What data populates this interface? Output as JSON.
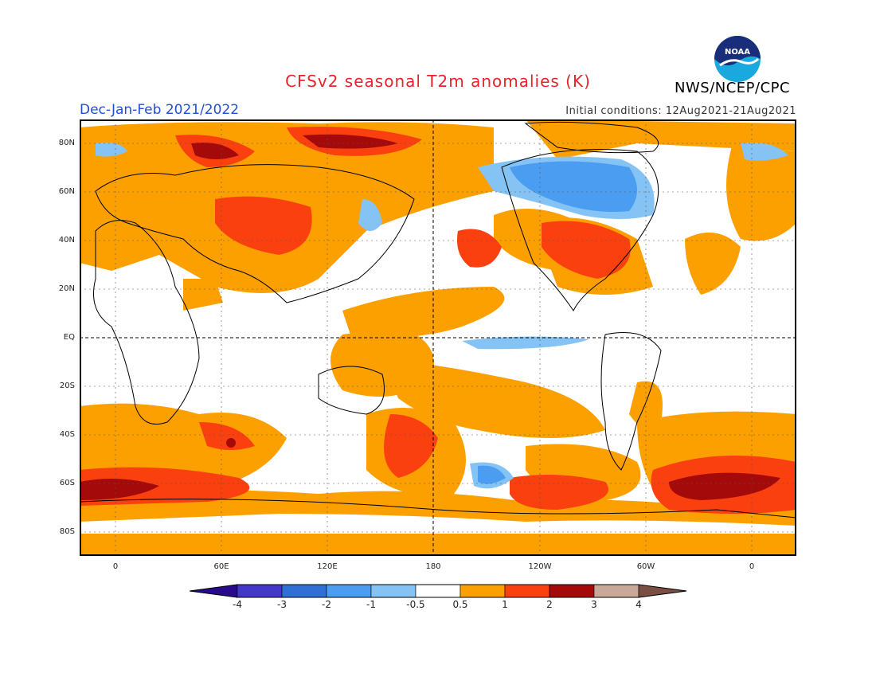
{
  "header": {
    "title": "CFSv2 seasonal T2m anomalies (K)",
    "season": "Dec-Jan-Feb 2021/2022",
    "initial_conditions": "Initial conditions: 12Aug2021-21Aug2021",
    "agency": "NWS/NCEP/CPC",
    "logo_text": "NOAA"
  },
  "map": {
    "lat_labels": [
      "80N",
      "60N",
      "40N",
      "20N",
      "EQ",
      "20S",
      "40S",
      "60S",
      "80S"
    ],
    "lon_labels": [
      "0",
      "60E",
      "120E",
      "180",
      "120W",
      "60W",
      "0"
    ]
  },
  "colorbar": {
    "labels": [
      "-4",
      "-3",
      "-2",
      "-1",
      "-0.5",
      "0.5",
      "1",
      "2",
      "3",
      "4"
    ],
    "colors": [
      "#2a0a8c",
      "#4438c8",
      "#2f6fd6",
      "#4a9df0",
      "#86c3f5",
      "#ffffff",
      "#fca000",
      "#fb4010",
      "#a50a0a",
      "#c9a898",
      "#7a4e42"
    ]
  }
}
